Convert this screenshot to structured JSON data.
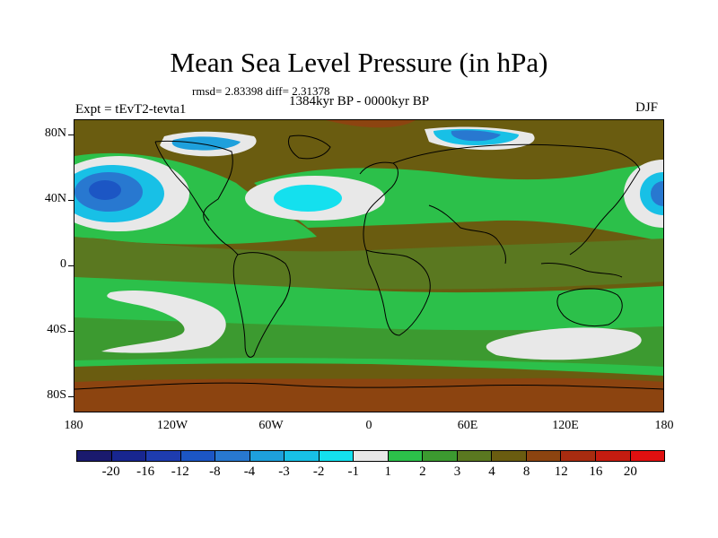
{
  "title": "Mean Sea Level Pressure (in hPa)",
  "stats": "rmsd= 2.83398 diff= 2.31378",
  "period": "1384kyr BP - 0000kyr BP",
  "experiment": "Expt = tEvT2-tevta1",
  "season": "DJF",
  "axes": {
    "y_labels": [
      "80N",
      "40N",
      "0",
      "40S",
      "80S"
    ],
    "x_labels": [
      "180",
      "120W",
      "60W",
      "0",
      "60E",
      "120E",
      "180"
    ]
  },
  "colorbar": {
    "labels": [
      "-20",
      "-16",
      "-12",
      "-8",
      "-4",
      "-3",
      "-2",
      "-1",
      "1",
      "2",
      "3",
      "4",
      "8",
      "12",
      "16",
      "20"
    ],
    "colors": [
      "#1a1a6e",
      "#182690",
      "#1e3cb0",
      "#1c56c4",
      "#2878d0",
      "#1ea0dc",
      "#18c0e6",
      "#14e0ee",
      "#e8e8e8",
      "#2cc04a",
      "#3c9a30",
      "#5a7820",
      "#6a5c10",
      "#8c4410",
      "#a82c10",
      "#c41c10",
      "#e01010"
    ]
  },
  "map": {
    "background": "#6a5c10",
    "colors": {
      "light_green": "#2cc04a",
      "mid_green": "#3c9a30",
      "olive": "#5a7820",
      "brown": "#8c4410",
      "grey": "#e8e8e8",
      "cyan": "#14e0ee",
      "cyan2": "#18c0e6",
      "blue": "#1ea0dc",
      "mid_blue": "#2878d0",
      "deep_blue": "#1c56c4"
    }
  }
}
